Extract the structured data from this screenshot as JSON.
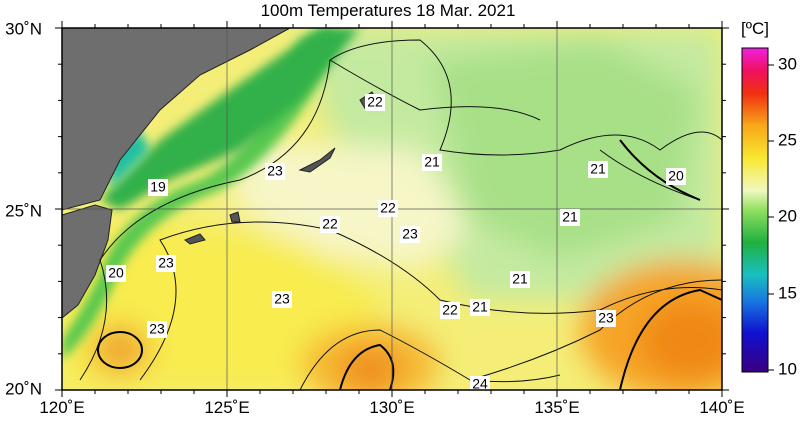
{
  "title": "100m Temperatures  18 Mar. 2021",
  "unit": "[ºC]",
  "x_labels": [
    "120˚E",
    "125˚E",
    "130˚E",
    "135˚E",
    "140˚E"
  ],
  "y_labels": [
    "30˚N",
    "25˚N",
    "20˚N"
  ],
  "colorbar_labels": [
    "30",
    "25",
    "20",
    "15",
    "10"
  ],
  "contour_labels": [
    "22",
    "21",
    "23",
    "19",
    "22",
    "21",
    "20",
    "22",
    "23",
    "21",
    "20",
    "23",
    "21",
    "23",
    "22",
    "21",
    "23",
    "23",
    "24"
  ]
}
